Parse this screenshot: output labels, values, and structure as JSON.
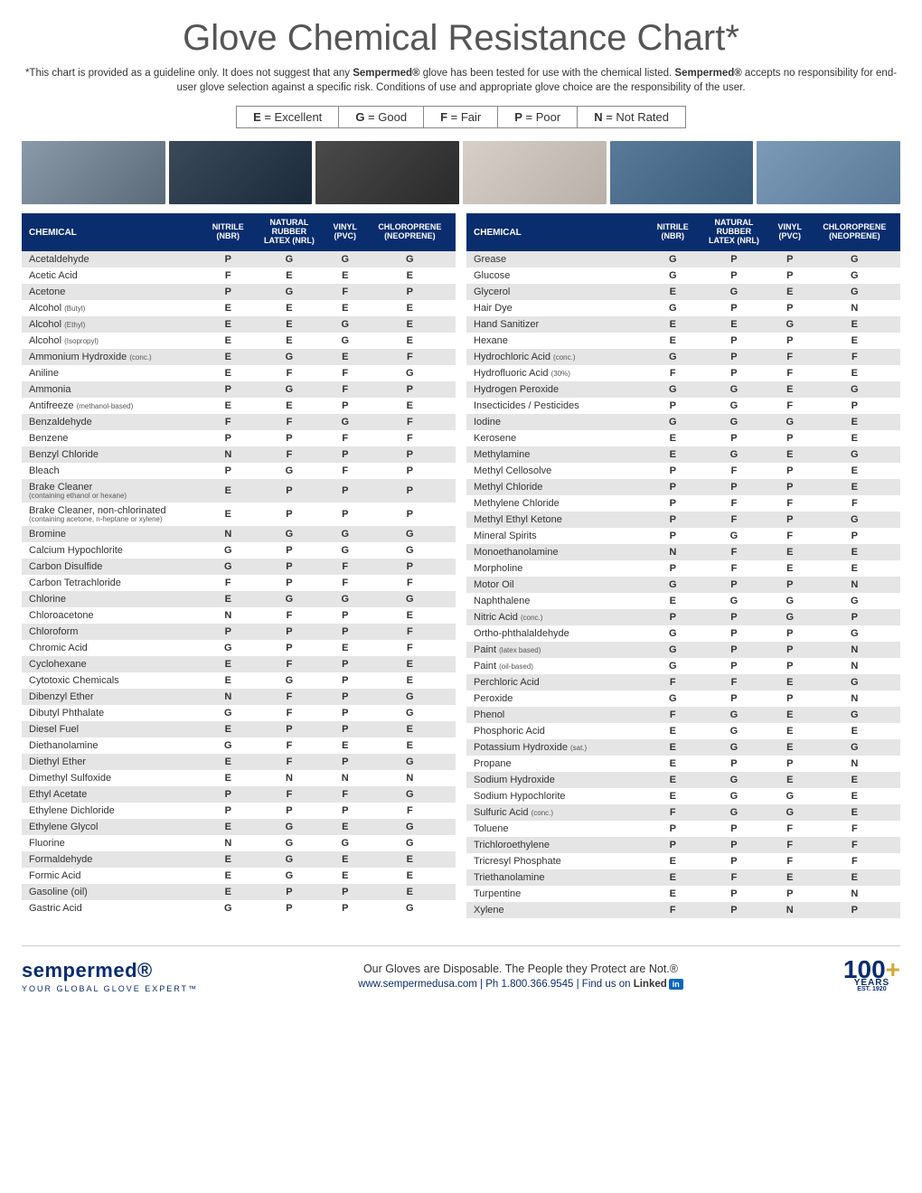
{
  "title": "Glove Chemical Resistance Chart*",
  "disclaimer_parts": {
    "p1": "*This chart is provided as a guideline only. It does not suggest that any ",
    "b1": "Sempermed®",
    "p2": " glove has been tested for use with the chemical listed. ",
    "b2": "Sempermed®",
    "p3": " accepts no responsibility for end-user glove selection against a specific risk. Conditions of use and appropriate glove choice are the responsibility of the user."
  },
  "legend": [
    {
      "code": "E",
      "label": " = Excellent"
    },
    {
      "code": "G",
      "label": " = Good"
    },
    {
      "code": "F",
      "label": " = Fair"
    },
    {
      "code": "P",
      "label": " = Poor"
    },
    {
      "code": "N",
      "label": " = Not Rated"
    }
  ],
  "headers": {
    "chemical": "CHEMICAL",
    "nitrile": "NITRILE\n(NBR)",
    "latex": "NATURAL\nRUBBER\nLATEX (NRL)",
    "vinyl": "VINYL\n(PVC)",
    "chloroprene": "CHLOROPRENE\n(NEOPRENE)"
  },
  "left_rows": [
    {
      "name": "Acetaldehyde",
      "v": [
        "P",
        "G",
        "G",
        "G"
      ]
    },
    {
      "name": "Acetic Acid",
      "v": [
        "F",
        "E",
        "E",
        "E"
      ]
    },
    {
      "name": "Acetone",
      "v": [
        "P",
        "G",
        "F",
        "P"
      ]
    },
    {
      "name": "Alcohol",
      "note": "(Butyl)",
      "v": [
        "E",
        "E",
        "E",
        "E"
      ]
    },
    {
      "name": "Alcohol",
      "note": "(Ethyl)",
      "v": [
        "E",
        "E",
        "G",
        "E"
      ]
    },
    {
      "name": "Alcohol",
      "note": "(Isopropyl)",
      "v": [
        "E",
        "E",
        "G",
        "E"
      ]
    },
    {
      "name": "Ammonium Hydroxide",
      "note": "(conc.)",
      "v": [
        "E",
        "G",
        "E",
        "F"
      ]
    },
    {
      "name": "Aniline",
      "v": [
        "E",
        "F",
        "F",
        "G"
      ]
    },
    {
      "name": "Ammonia",
      "v": [
        "P",
        "G",
        "F",
        "P"
      ]
    },
    {
      "name": "Antifreeze",
      "note": "(methanol-based)",
      "v": [
        "E",
        "E",
        "P",
        "E"
      ]
    },
    {
      "name": "Benzaldehyde",
      "v": [
        "F",
        "F",
        "G",
        "F"
      ]
    },
    {
      "name": "Benzene",
      "v": [
        "P",
        "P",
        "F",
        "F"
      ]
    },
    {
      "name": "Benzyl Chloride",
      "v": [
        "N",
        "F",
        "P",
        "P"
      ]
    },
    {
      "name": "Bleach",
      "v": [
        "P",
        "G",
        "F",
        "P"
      ]
    },
    {
      "name": "Brake Cleaner",
      "sub": "(containing ethanol or hexane)",
      "v": [
        "E",
        "P",
        "P",
        "P"
      ]
    },
    {
      "name": "Brake Cleaner, non-chlorinated",
      "sub": "(containing acetone, n-heptane or xylene)",
      "v": [
        "E",
        "P",
        "P",
        "P"
      ]
    },
    {
      "name": "Bromine",
      "v": [
        "N",
        "G",
        "G",
        "G"
      ]
    },
    {
      "name": "Calcium Hypochlorite",
      "v": [
        "G",
        "P",
        "G",
        "G"
      ]
    },
    {
      "name": "Carbon Disulfide",
      "v": [
        "G",
        "P",
        "F",
        "P"
      ]
    },
    {
      "name": "Carbon Tetrachloride",
      "v": [
        "F",
        "P",
        "F",
        "F"
      ]
    },
    {
      "name": "Chlorine",
      "v": [
        "E",
        "G",
        "G",
        "G"
      ]
    },
    {
      "name": "Chloroacetone",
      "v": [
        "N",
        "F",
        "P",
        "E"
      ]
    },
    {
      "name": "Chloroform",
      "v": [
        "P",
        "P",
        "P",
        "F"
      ]
    },
    {
      "name": "Chromic Acid",
      "v": [
        "G",
        "P",
        "E",
        "F"
      ]
    },
    {
      "name": "Cyclohexane",
      "v": [
        "E",
        "F",
        "P",
        "E"
      ]
    },
    {
      "name": "Cytotoxic Chemicals",
      "v": [
        "E",
        "G",
        "P",
        "E"
      ]
    },
    {
      "name": "Dibenzyl  Ether",
      "v": [
        "N",
        "F",
        "P",
        "G"
      ]
    },
    {
      "name": "Dibutyl  Phthalate",
      "v": [
        "G",
        "F",
        "P",
        "G"
      ]
    },
    {
      "name": "Diesel Fuel",
      "v": [
        "E",
        "P",
        "P",
        "E"
      ]
    },
    {
      "name": "Diethanolamine",
      "v": [
        "G",
        "F",
        "E",
        "E"
      ]
    },
    {
      "name": "Diethyl Ether",
      "v": [
        "E",
        "F",
        "P",
        "G"
      ]
    },
    {
      "name": "Dimethyl Sulfoxide",
      "v": [
        "E",
        "N",
        "N",
        "N"
      ]
    },
    {
      "name": "Ethyl Acetate",
      "v": [
        "P",
        "F",
        "F",
        "G"
      ]
    },
    {
      "name": "Ethylene Dichloride",
      "v": [
        "P",
        "P",
        "P",
        "F"
      ]
    },
    {
      "name": "Ethylene Glycol",
      "v": [
        "E",
        "G",
        "E",
        "G"
      ]
    },
    {
      "name": "Fluorine",
      "v": [
        "N",
        "G",
        "G",
        "G"
      ]
    },
    {
      "name": "Formaldehyde",
      "v": [
        "E",
        "G",
        "E",
        "E"
      ]
    },
    {
      "name": "Formic Acid",
      "v": [
        "E",
        "G",
        "E",
        "E"
      ]
    },
    {
      "name": "Gasoline (oil)",
      "v": [
        "E",
        "P",
        "P",
        "E"
      ]
    },
    {
      "name": "Gastric Acid",
      "v": [
        "G",
        "P",
        "P",
        "G"
      ]
    }
  ],
  "right_rows": [
    {
      "name": "Grease",
      "v": [
        "G",
        "P",
        "P",
        "G"
      ]
    },
    {
      "name": "Glucose",
      "v": [
        "G",
        "P",
        "P",
        "G"
      ]
    },
    {
      "name": "Glycerol",
      "v": [
        "E",
        "G",
        "E",
        "G"
      ]
    },
    {
      "name": "Hair Dye",
      "v": [
        "G",
        "P",
        "P",
        "N"
      ]
    },
    {
      "name": "Hand Sanitizer",
      "v": [
        "E",
        "E",
        "G",
        "E"
      ]
    },
    {
      "name": "Hexane",
      "v": [
        "E",
        "P",
        "P",
        "E"
      ]
    },
    {
      "name": "Hydrochloric Acid",
      "note": "(conc.)",
      "v": [
        "G",
        "P",
        "F",
        "F"
      ]
    },
    {
      "name": "Hydrofluoric Acid",
      "note": "(30%)",
      "v": [
        "F",
        "P",
        "F",
        "E"
      ]
    },
    {
      "name": "Hydrogen Peroxide",
      "v": [
        "G",
        "G",
        "E",
        "G"
      ]
    },
    {
      "name": "Insecticides / Pesticides",
      "v": [
        "P",
        "G",
        "F",
        "P"
      ]
    },
    {
      "name": "Iodine",
      "v": [
        "G",
        "G",
        "G",
        "E"
      ]
    },
    {
      "name": "Kerosene",
      "v": [
        "E",
        "P",
        "P",
        "E"
      ]
    },
    {
      "name": "Methylamine",
      "v": [
        "E",
        "G",
        "E",
        "G"
      ]
    },
    {
      "name": "Methyl Cellosolve",
      "v": [
        "P",
        "F",
        "P",
        "E"
      ]
    },
    {
      "name": "Methyl Chloride",
      "v": [
        "P",
        "P",
        "P",
        "E"
      ]
    },
    {
      "name": "Methylene Chloride",
      "v": [
        "P",
        "F",
        "F",
        "F"
      ]
    },
    {
      "name": "Methyl Ethyl Ketone",
      "v": [
        "P",
        "F",
        "P",
        "G"
      ]
    },
    {
      "name": "Mineral Spirits",
      "v": [
        "P",
        "G",
        "F",
        "P"
      ]
    },
    {
      "name": "Monoethanolamine",
      "v": [
        "N",
        "F",
        "E",
        "E"
      ]
    },
    {
      "name": "Morpholine",
      "v": [
        "P",
        "F",
        "E",
        "E"
      ]
    },
    {
      "name": "Motor Oil",
      "v": [
        "G",
        "P",
        "P",
        "N"
      ]
    },
    {
      "name": "Naphthalene",
      "v": [
        "E",
        "G",
        "G",
        "G"
      ]
    },
    {
      "name": "Nitric Acid",
      "note": "(conc.)",
      "v": [
        "P",
        "P",
        "G",
        "P"
      ]
    },
    {
      "name": "Ortho-phthalaldehyde",
      "v": [
        "G",
        "P",
        "P",
        "G"
      ]
    },
    {
      "name": "Paint",
      "note": "(latex based)",
      "v": [
        "G",
        "P",
        "P",
        "N"
      ]
    },
    {
      "name": "Paint",
      "note": "(oil-based)",
      "v": [
        "G",
        "P",
        "P",
        "N"
      ]
    },
    {
      "name": "Perchloric Acid",
      "v": [
        "F",
        "F",
        "E",
        "G"
      ]
    },
    {
      "name": "Peroxide",
      "v": [
        "G",
        "P",
        "P",
        "N"
      ]
    },
    {
      "name": "Phenol",
      "v": [
        "F",
        "G",
        "E",
        "G"
      ]
    },
    {
      "name": "Phosphoric Acid",
      "v": [
        "E",
        "G",
        "E",
        "E"
      ]
    },
    {
      "name": "Potassium Hydroxide",
      "note": "(sat.)",
      "v": [
        "E",
        "G",
        "E",
        "G"
      ]
    },
    {
      "name": "Propane",
      "v": [
        "E",
        "P",
        "P",
        "N"
      ]
    },
    {
      "name": "Sodium Hydroxide",
      "v": [
        "E",
        "G",
        "E",
        "E"
      ]
    },
    {
      "name": "Sodium Hypochlorite",
      "v": [
        "E",
        "G",
        "G",
        "E"
      ]
    },
    {
      "name": "Sulfuric Acid",
      "note": "(conc.)",
      "v": [
        "F",
        "G",
        "G",
        "E"
      ]
    },
    {
      "name": "Toluene",
      "v": [
        "P",
        "P",
        "F",
        "F"
      ]
    },
    {
      "name": "Trichloroethylene",
      "v": [
        "P",
        "P",
        "F",
        "F"
      ]
    },
    {
      "name": "Tricresyl Phosphate",
      "v": [
        "E",
        "P",
        "F",
        "F"
      ]
    },
    {
      "name": "Triethanolamine",
      "v": [
        "E",
        "F",
        "E",
        "E"
      ]
    },
    {
      "name": "Turpentine",
      "v": [
        "E",
        "P",
        "P",
        "N"
      ]
    },
    {
      "name": "Xylene",
      "v": [
        "F",
        "P",
        "N",
        "P"
      ]
    }
  ],
  "footer": {
    "brand": "sempermed®",
    "brand_tag": "YOUR GLOBAL GLOVE EXPERT™",
    "slogan": "Our Gloves are Disposable. The People they Protect are Not.®",
    "contact": "www.sempermedusa.com  |  Ph 1.800.366.9545  |  Find us on ",
    "linkedin": "Linked in",
    "badge_num": "100",
    "badge_plus": "+",
    "badge_years": "YEARS",
    "badge_est": "EST. 1920"
  },
  "colors": {
    "header_bg": "#0a2d6e",
    "shade_bg": "#e5e5e5",
    "accent": "#0a2d6e"
  }
}
